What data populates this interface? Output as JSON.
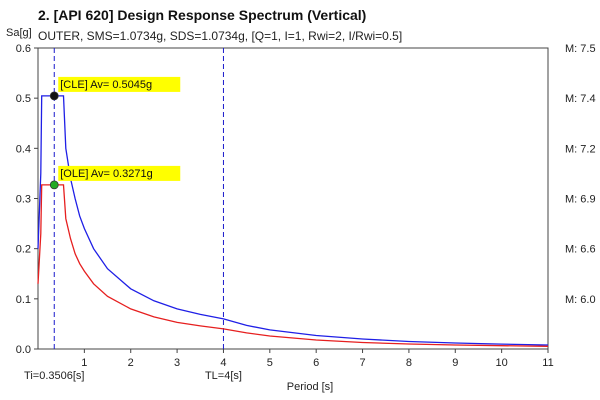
{
  "chart_data": {
    "type": "line",
    "title": "2. [API 620] Design Response Spectrum (Vertical)",
    "subtitle": "OUTER, SMS=1.0734g, SDS=1.0734g, [Q=1, I=1, Rwi=2, I/Rwi=0.5]",
    "xlabel": "Period [s]",
    "ylabel": "Sa[g]",
    "xlim": [
      0,
      11
    ],
    "ylim": [
      0,
      0.6
    ],
    "x_ticks": [
      1,
      2,
      3,
      4,
      5,
      6,
      7,
      8,
      9,
      10,
      11
    ],
    "y_ticks": [
      0.0,
      0.1,
      0.2,
      0.3,
      0.4,
      0.5,
      0.6
    ],
    "y_tick_labels": [
      "0.0",
      "0.1",
      "0.2",
      "0.3",
      "0.4",
      "0.5",
      "0.6"
    ],
    "right_axis_labels": [
      {
        "y": 0.6,
        "text": "M: 7.5"
      },
      {
        "y": 0.5,
        "text": "M: 7.4"
      },
      {
        "y": 0.4,
        "text": "M: 7.2"
      },
      {
        "y": 0.3,
        "text": "M: 6.9"
      },
      {
        "y": 0.2,
        "text": "M: 6.6"
      },
      {
        "y": 0.1,
        "text": "M: 6.0"
      }
    ],
    "series": [
      {
        "color": "#1f1fe6",
        "x": [
          0,
          0.06,
          0.08,
          0.35,
          0.55,
          0.6,
          0.7,
          0.8,
          0.9,
          1.0,
          1.2,
          1.5,
          2.0,
          2.5,
          3.0,
          3.5,
          4.0,
          4.5,
          5,
          6,
          7,
          8,
          9,
          10,
          11
        ],
        "values": [
          0.2,
          0.35,
          0.5045,
          0.5045,
          0.5045,
          0.4,
          0.34,
          0.3,
          0.265,
          0.24,
          0.2,
          0.16,
          0.12,
          0.096,
          0.08,
          0.069,
          0.06,
          0.047,
          0.038,
          0.027,
          0.02,
          0.015,
          0.012,
          0.0097,
          0.008
        ]
      },
      {
        "color": "#e61f1f",
        "x": [
          0,
          0.06,
          0.08,
          0.35,
          0.55,
          0.6,
          0.7,
          0.8,
          0.9,
          1.0,
          1.2,
          1.5,
          2.0,
          2.5,
          3.0,
          3.5,
          4.0,
          4.5,
          5,
          6,
          7,
          8,
          9,
          10,
          11
        ],
        "values": [
          0.13,
          0.23,
          0.3271,
          0.3271,
          0.3271,
          0.26,
          0.22,
          0.19,
          0.17,
          0.155,
          0.13,
          0.105,
          0.08,
          0.064,
          0.053,
          0.046,
          0.04,
          0.032,
          0.026,
          0.018,
          0.013,
          0.01,
          0.008,
          0.0065,
          0.0054
        ]
      }
    ],
    "vlines": [
      {
        "x": 0.3506,
        "label": "Ti=0.3506[s]",
        "color": "#1a1acc"
      },
      {
        "x": 4,
        "label": "TL=4[s]",
        "color": "#1a1acc"
      }
    ],
    "annotations": [
      {
        "x": 0.3506,
        "y": 0.5045,
        "text": "[CLE] Av= 0.5045g",
        "marker_color": "#111111",
        "box_color": "#ffff00"
      },
      {
        "x": 0.3506,
        "y": 0.3271,
        "text": "[OLE] Av= 0.3271g",
        "marker_color": "#22aa22",
        "box_color": "#ffff00"
      }
    ],
    "grid": false,
    "legend": "none"
  }
}
